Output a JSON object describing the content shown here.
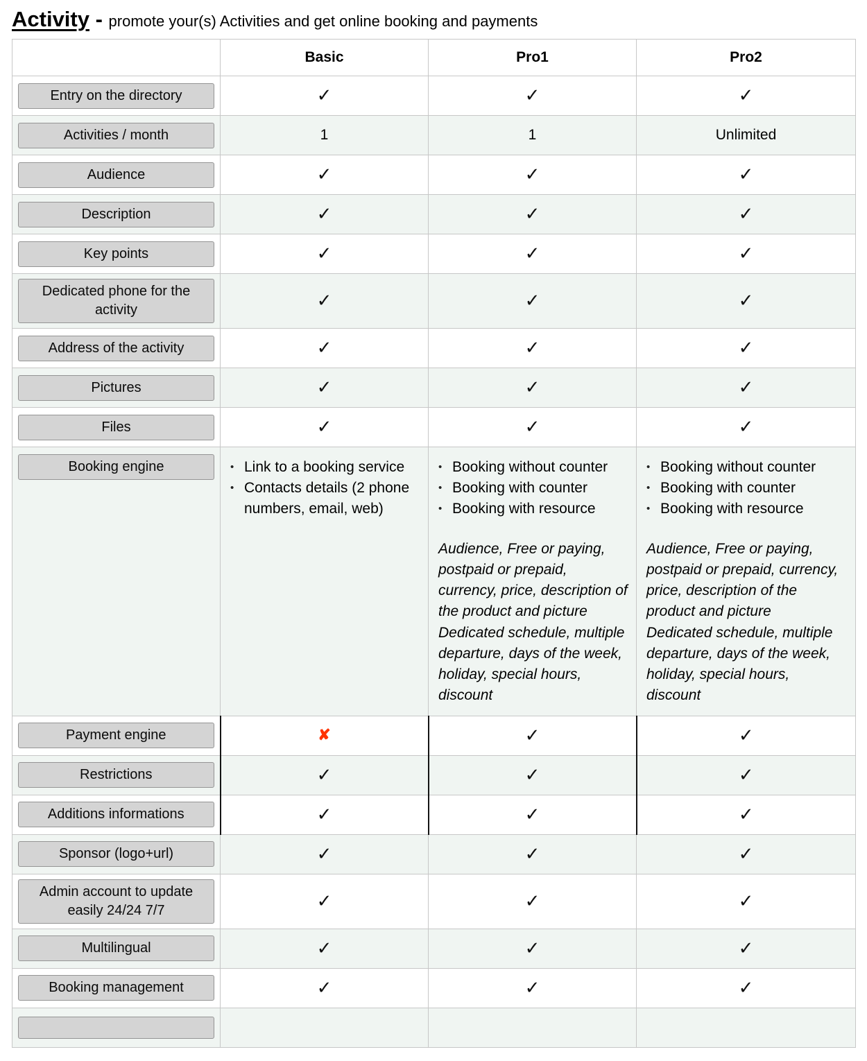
{
  "header": {
    "title": "Activity",
    "separator": " - ",
    "subtitle": "promote your(s) Activities and get online booking and payments"
  },
  "table": {
    "columns": [
      "",
      "Basic",
      "Pro1",
      "Pro2"
    ],
    "check_symbol": "✓",
    "cross_symbol": "✘",
    "check_color": "#111111",
    "cross_color": "#ff3300",
    "tint_color": "#f0f5f2",
    "rows": [
      {
        "label": "Entry on the directory",
        "cells": [
          {
            "type": "check"
          },
          {
            "type": "check"
          },
          {
            "type": "check"
          }
        ]
      },
      {
        "label": "Activities / month",
        "cells": [
          {
            "type": "text",
            "text": "1"
          },
          {
            "type": "text",
            "text": "1"
          },
          {
            "type": "text",
            "text": "Unlimited"
          }
        ]
      },
      {
        "label": "Audience",
        "cells": [
          {
            "type": "check"
          },
          {
            "type": "check"
          },
          {
            "type": "check"
          }
        ]
      },
      {
        "label": "Description",
        "cells": [
          {
            "type": "check"
          },
          {
            "type": "check"
          },
          {
            "type": "check"
          }
        ]
      },
      {
        "label": "Key points",
        "cells": [
          {
            "type": "check"
          },
          {
            "type": "check"
          },
          {
            "type": "check"
          }
        ]
      },
      {
        "label": "Dedicated phone for the activity",
        "cells": [
          {
            "type": "check"
          },
          {
            "type": "check"
          },
          {
            "type": "check"
          }
        ]
      },
      {
        "label": "Address of the activity",
        "cells": [
          {
            "type": "check"
          },
          {
            "type": "check"
          },
          {
            "type": "check"
          }
        ]
      },
      {
        "label": "Pictures",
        "cells": [
          {
            "type": "check"
          },
          {
            "type": "check"
          },
          {
            "type": "check"
          }
        ]
      },
      {
        "label": "Files",
        "cells": [
          {
            "type": "check"
          },
          {
            "type": "check"
          },
          {
            "type": "check"
          }
        ]
      },
      {
        "label": "Booking engine",
        "cells": [
          {
            "type": "list",
            "items": [
              "Link to a booking service",
              "Contacts details (2 phone numbers, email, web)"
            ]
          },
          {
            "type": "list",
            "items": [
              "Booking without counter",
              "Booking with counter",
              "Booking with resource"
            ],
            "note": "Audience, Free or paying, postpaid or prepaid, currency, price, description of the product and picture\nDedicated schedule, multiple departure, days of the week, holiday, special hours, discount"
          },
          {
            "type": "list",
            "items": [
              "Booking without counter",
              "Booking with counter",
              "Booking with resource"
            ],
            "note": "Audience, Free or paying, postpaid or prepaid, currency, price, description of the product and picture\nDedicated schedule, multiple departure, days of the week, holiday, special hours, discount"
          }
        ]
      },
      {
        "label": "Payment engine",
        "emphasized": true,
        "cells": [
          {
            "type": "cross"
          },
          {
            "type": "check"
          },
          {
            "type": "check"
          }
        ]
      },
      {
        "label": "Restrictions",
        "emphasized": true,
        "cells": [
          {
            "type": "check"
          },
          {
            "type": "check"
          },
          {
            "type": "check"
          }
        ]
      },
      {
        "label": "Additions informations",
        "emphasized": true,
        "cells": [
          {
            "type": "check"
          },
          {
            "type": "check"
          },
          {
            "type": "check"
          }
        ]
      },
      {
        "label": "Sponsor (logo+url)",
        "cells": [
          {
            "type": "check"
          },
          {
            "type": "check"
          },
          {
            "type": "check"
          }
        ]
      },
      {
        "label": "Admin account to update easily 24/24 7/7",
        "cells": [
          {
            "type": "check"
          },
          {
            "type": "check"
          },
          {
            "type": "check"
          }
        ]
      },
      {
        "label": "Multilingual",
        "cells": [
          {
            "type": "check"
          },
          {
            "type": "check"
          },
          {
            "type": "check"
          }
        ]
      },
      {
        "label": "Booking management",
        "cells": [
          {
            "type": "check"
          },
          {
            "type": "check"
          },
          {
            "type": "check"
          }
        ]
      },
      {
        "label": "",
        "cells": [
          {
            "type": "empty"
          },
          {
            "type": "empty"
          },
          {
            "type": "empty"
          }
        ]
      }
    ]
  }
}
